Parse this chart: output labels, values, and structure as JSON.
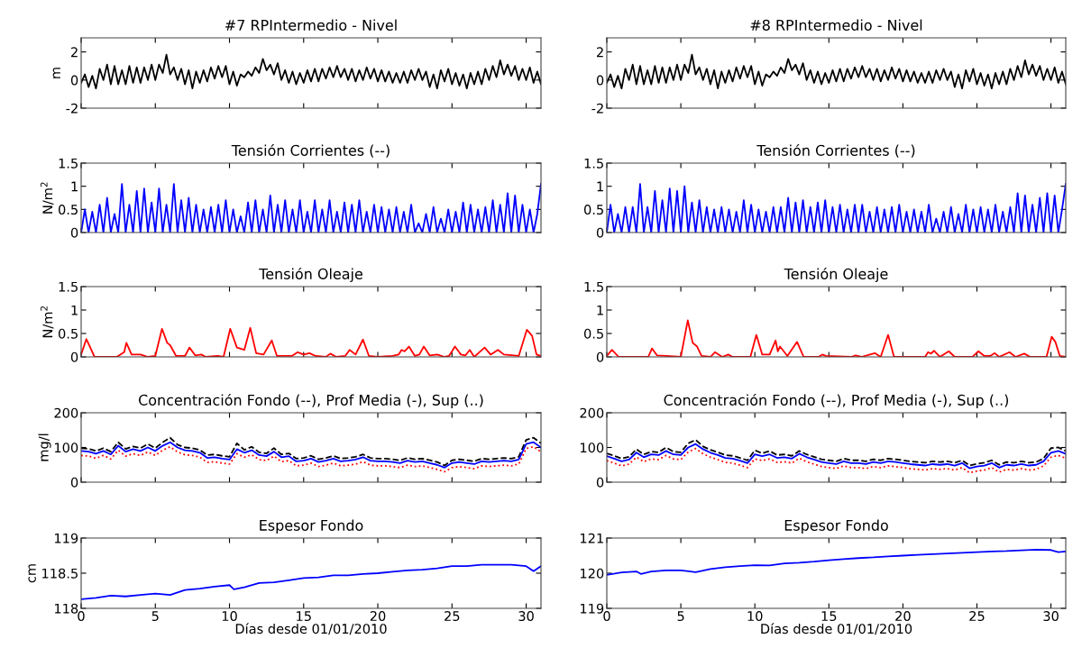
{
  "chart_data": [
    {
      "type": "line",
      "title": "#7 RPIntermedio - Nivel",
      "ylabel": "m",
      "xlim": [
        0,
        31
      ],
      "xticks": [
        0,
        5,
        10,
        15,
        20,
        25,
        30
      ],
      "ylim": [
        -2,
        3
      ],
      "yticks": [
        -2,
        0,
        2
      ],
      "tick_labels": "y",
      "x": [
        0,
        0.25,
        0.5,
        0.75,
        1,
        1.25,
        1.5,
        1.75,
        2,
        2.25,
        2.5,
        2.75,
        3,
        3.25,
        3.5,
        3.75,
        4,
        4.25,
        4.5,
        4.75,
        5,
        5.25,
        5.5,
        5.75,
        6,
        6.25,
        6.5,
        6.75,
        7,
        7.25,
        7.5,
        7.75,
        8,
        8.25,
        8.5,
        8.75,
        9,
        9.25,
        9.5,
        9.75,
        10,
        10.25,
        10.5,
        10.75,
        11,
        11.25,
        11.5,
        11.75,
        12,
        12.25,
        12.5,
        12.75,
        13,
        13.25,
        13.5,
        13.75,
        14,
        14.25,
        14.5,
        14.75,
        15,
        15.25,
        15.5,
        15.75,
        16,
        16.25,
        16.5,
        16.75,
        17,
        17.25,
        17.5,
        17.75,
        18,
        18.25,
        18.5,
        18.75,
        19,
        19.25,
        19.5,
        19.75,
        20,
        20.25,
        20.5,
        20.75,
        21,
        21.25,
        21.5,
        21.75,
        22,
        22.25,
        22.5,
        22.75,
        23,
        23.25,
        23.5,
        23.75,
        24,
        24.25,
        24.5,
        24.75,
        25,
        25.25,
        25.5,
        25.75,
        26,
        26.25,
        26.5,
        26.75,
        27,
        27.25,
        27.5,
        27.75,
        28,
        28.25,
        28.5,
        28.75,
        29,
        29.25,
        29.5,
        29.75,
        30,
        30.25,
        30.5,
        30.75,
        31
      ],
      "series": [
        {
          "color": "#000000",
          "line_style": "solid",
          "values": [
            -0.2,
            0.4,
            -0.5,
            0.3,
            -0.6,
            0.8,
            0.0,
            1.1,
            -0.3,
            1.0,
            -0.3,
            0.7,
            -0.3,
            1.0,
            -0.2,
            0.9,
            -0.2,
            0.9,
            0.0,
            1.1,
            0.0,
            1.1,
            0.5,
            1.8,
            0.4,
            0.9,
            0.0,
            0.8,
            -0.3,
            0.7,
            -0.6,
            0.6,
            -0.2,
            0.7,
            -0.1,
            0.9,
            0.1,
            1.0,
            0.2,
            1.0,
            -0.3,
            0.6,
            -0.4,
            0.4,
            0.2,
            0.6,
            0.3,
            0.9,
            0.5,
            1.5,
            0.7,
            1.1,
            0.4,
            1.2,
            0.0,
            0.7,
            -0.2,
            0.6,
            -0.3,
            0.5,
            -0.2,
            0.7,
            -0.1,
            0.8,
            -0.1,
            0.8,
            0.1,
            0.9,
            0.2,
            1.0,
            0.2,
            0.8,
            0.0,
            0.8,
            -0.1,
            0.7,
            0.0,
            0.9,
            0.1,
            0.8,
            -0.1,
            0.7,
            -0.1,
            0.6,
            -0.2,
            0.5,
            -0.2,
            0.6,
            -0.2,
            0.7,
            0.0,
            0.8,
            0.0,
            0.6,
            -0.5,
            0.4,
            -0.6,
            0.7,
            -0.1,
            0.8,
            -0.3,
            0.5,
            -0.4,
            0.4,
            -0.6,
            0.5,
            -0.3,
            0.6,
            -0.3,
            0.8,
            0.0,
            1.0,
            0.2,
            1.4,
            0.4,
            1.1,
            0.3,
            1.0,
            0.0,
            0.8,
            0.0,
            0.9,
            -0.2,
            0.6,
            -0.3
          ]
        }
      ]
    },
    {
      "type": "line",
      "title": "#8 RPIntermedio - Nivel",
      "xlim": [
        0,
        31
      ],
      "xticks": [
        0,
        5,
        10,
        15,
        20,
        25,
        30
      ],
      "ylim": [
        -2,
        3
      ],
      "yticks": [
        -2,
        0,
        2
      ],
      "tick_labels": "y",
      "x": [
        0,
        0.25,
        0.5,
        0.75,
        1,
        1.25,
        1.5,
        1.75,
        2,
        2.25,
        2.5,
        2.75,
        3,
        3.25,
        3.5,
        3.75,
        4,
        4.25,
        4.5,
        4.75,
        5,
        5.25,
        5.5,
        5.75,
        6,
        6.25,
        6.5,
        6.75,
        7,
        7.25,
        7.5,
        7.75,
        8,
        8.25,
        8.5,
        8.75,
        9,
        9.25,
        9.5,
        9.75,
        10,
        10.25,
        10.5,
        10.75,
        11,
        11.25,
        11.5,
        11.75,
        12,
        12.25,
        12.5,
        12.75,
        13,
        13.25,
        13.5,
        13.75,
        14,
        14.25,
        14.5,
        14.75,
        15,
        15.25,
        15.5,
        15.75,
        16,
        16.25,
        16.5,
        16.75,
        17,
        17.25,
        17.5,
        17.75,
        18,
        18.25,
        18.5,
        18.75,
        19,
        19.25,
        19.5,
        19.75,
        20,
        20.25,
        20.5,
        20.75,
        21,
        21.25,
        21.5,
        21.75,
        22,
        22.25,
        22.5,
        22.75,
        23,
        23.25,
        23.5,
        23.75,
        24,
        24.25,
        24.5,
        24.75,
        25,
        25.25,
        25.5,
        25.75,
        26,
        26.25,
        26.5,
        26.75,
        27,
        27.25,
        27.5,
        27.75,
        28,
        28.25,
        28.5,
        28.75,
        29,
        29.25,
        29.5,
        29.75,
        30,
        30.25,
        30.5,
        30.75,
        31
      ],
      "series": [
        {
          "color": "#000000",
          "line_style": "solid",
          "values": [
            -0.2,
            0.4,
            -0.5,
            0.3,
            -0.6,
            0.8,
            0.0,
            1.1,
            -0.3,
            1.0,
            -0.3,
            0.7,
            -0.3,
            1.0,
            -0.2,
            0.9,
            -0.2,
            0.9,
            0.0,
            1.1,
            0.0,
            1.1,
            0.5,
            1.8,
            0.4,
            0.9,
            0.0,
            0.8,
            -0.3,
            0.7,
            -0.6,
            0.6,
            -0.2,
            0.7,
            -0.1,
            0.9,
            0.1,
            1.0,
            0.2,
            1.0,
            -0.3,
            0.6,
            -0.4,
            0.4,
            0.2,
            0.6,
            0.3,
            0.9,
            0.5,
            1.5,
            0.7,
            1.1,
            0.4,
            1.2,
            0.0,
            0.7,
            -0.2,
            0.6,
            -0.3,
            0.5,
            -0.2,
            0.7,
            -0.1,
            0.8,
            -0.1,
            0.8,
            0.1,
            0.9,
            0.2,
            1.0,
            0.2,
            0.8,
            0.0,
            0.8,
            -0.1,
            0.7,
            0.0,
            0.9,
            0.1,
            0.8,
            -0.1,
            0.7,
            -0.1,
            0.6,
            -0.2,
            0.5,
            -0.2,
            0.6,
            -0.2,
            0.7,
            0.0,
            0.8,
            0.0,
            0.6,
            -0.5,
            0.4,
            -0.6,
            0.7,
            -0.1,
            0.8,
            -0.3,
            0.5,
            -0.4,
            0.4,
            -0.6,
            0.5,
            -0.3,
            0.6,
            -0.3,
            0.8,
            0.0,
            1.0,
            0.2,
            1.4,
            0.4,
            1.1,
            0.3,
            1.0,
            0.0,
            0.8,
            0.0,
            0.9,
            -0.2,
            0.6,
            -0.3
          ]
        }
      ]
    },
    {
      "type": "line",
      "title": "Tensión Corrientes (--)",
      "ylabel": "N/m$^{2}$",
      "xlim": [
        0,
        31
      ],
      "xticks": [
        0,
        5,
        10,
        15,
        20,
        25,
        30
      ],
      "ylim": [
        0,
        1.5
      ],
      "yticks": [
        0,
        0.5,
        1,
        1.5
      ],
      "tick_labels": "y",
      "x": [
        0,
        0.25,
        0.5,
        0.75,
        1,
        1.25,
        1.5,
        1.75,
        2,
        2.25,
        2.5,
        2.75,
        3,
        3.25,
        3.5,
        3.75,
        4,
        4.25,
        4.5,
        4.75,
        5,
        5.25,
        5.5,
        5.75,
        6,
        6.25,
        6.5,
        6.75,
        7,
        7.25,
        7.5,
        7.75,
        8,
        8.25,
        8.5,
        8.75,
        9,
        9.25,
        9.5,
        9.75,
        10,
        10.25,
        10.5,
        10.75,
        11,
        11.25,
        11.5,
        11.75,
        12,
        12.25,
        12.5,
        12.75,
        13,
        13.25,
        13.5,
        13.75,
        14,
        14.25,
        14.5,
        14.75,
        15,
        15.25,
        15.5,
        15.75,
        16,
        16.25,
        16.5,
        16.75,
        17,
        17.25,
        17.5,
        17.75,
        18,
        18.25,
        18.5,
        18.75,
        19,
        19.25,
        19.5,
        19.75,
        20,
        20.25,
        20.5,
        20.75,
        21,
        21.25,
        21.5,
        21.75,
        22,
        22.25,
        22.5,
        22.75,
        23,
        23.25,
        23.5,
        23.75,
        24,
        24.25,
        24.5,
        24.75,
        25,
        25.25,
        25.5,
        25.75,
        26,
        26.25,
        26.5,
        26.75,
        27,
        27.25,
        27.5,
        27.75,
        28,
        28.25,
        28.5,
        28.75,
        29,
        29.25,
        29.5,
        29.75,
        30,
        30.25,
        30.5,
        30.75,
        31
      ],
      "series": [
        {
          "color": "#0000ff",
          "line_style": "solid",
          "values": [
            0,
            0.5,
            0,
            0.45,
            0,
            0.6,
            0,
            0.75,
            0,
            0.4,
            0,
            1.05,
            0,
            0.6,
            0,
            0.9,
            0,
            0.95,
            0,
            0.65,
            0,
            0.95,
            0,
            0.6,
            0,
            1.05,
            0,
            0.7,
            0,
            0.75,
            0,
            0.6,
            0,
            0.5,
            0,
            0.55,
            0,
            0.6,
            0,
            0.7,
            0,
            0.5,
            0,
            0.35,
            0,
            0.65,
            0,
            0.7,
            0,
            0.5,
            0,
            0.8,
            0,
            0.6,
            0,
            0.7,
            0,
            0.5,
            0,
            0.7,
            0,
            0.45,
            0,
            0.7,
            0,
            0.5,
            0,
            0.7,
            0,
            0.45,
            0,
            0.65,
            0,
            0.6,
            0,
            0.7,
            0,
            0.45,
            0,
            0.6,
            0,
            0.55,
            0,
            0.5,
            0,
            0.55,
            0,
            0.45,
            0,
            0.6,
            0,
            0.2,
            0,
            0.4,
            0,
            0.55,
            0,
            0.3,
            0,
            0.5,
            0,
            0.45,
            0,
            0.65,
            0,
            0.6,
            0,
            0.5,
            0,
            0.55,
            0,
            0.7,
            0,
            0.6,
            0,
            0.85,
            0,
            0.8,
            0,
            0.6,
            0,
            0.5,
            0,
            0.4,
            1.05
          ]
        }
      ]
    },
    {
      "type": "line",
      "title": "Tensión Corrientes (--)",
      "xlim": [
        0,
        31
      ],
      "xticks": [
        0,
        5,
        10,
        15,
        20,
        25,
        30
      ],
      "ylim": [
        0,
        1.5
      ],
      "yticks": [
        0,
        0.5,
        1,
        1.5
      ],
      "tick_labels": "y",
      "x": [
        0,
        0.25,
        0.5,
        0.75,
        1,
        1.25,
        1.5,
        1.75,
        2,
        2.25,
        2.5,
        2.75,
        3,
        3.25,
        3.5,
        3.75,
        4,
        4.25,
        4.5,
        4.75,
        5,
        5.25,
        5.5,
        5.75,
        6,
        6.25,
        6.5,
        6.75,
        7,
        7.25,
        7.5,
        7.75,
        8,
        8.25,
        8.5,
        8.75,
        9,
        9.25,
        9.5,
        9.75,
        10,
        10.25,
        10.5,
        10.75,
        11,
        11.25,
        11.5,
        11.75,
        12,
        12.25,
        12.5,
        12.75,
        13,
        13.25,
        13.5,
        13.75,
        14,
        14.25,
        14.5,
        14.75,
        15,
        15.25,
        15.5,
        15.75,
        16,
        16.25,
        16.5,
        16.75,
        17,
        17.25,
        17.5,
        17.75,
        18,
        18.25,
        18.5,
        18.75,
        19,
        19.25,
        19.5,
        19.75,
        20,
        20.25,
        20.5,
        20.75,
        21,
        21.25,
        21.5,
        21.75,
        22,
        22.25,
        22.5,
        22.75,
        23,
        23.25,
        23.5,
        23.75,
        24,
        24.25,
        24.5,
        24.75,
        25,
        25.25,
        25.5,
        25.75,
        26,
        26.25,
        26.5,
        26.75,
        27,
        27.25,
        27.5,
        27.75,
        28,
        28.25,
        28.5,
        28.75,
        29,
        29.25,
        29.5,
        29.75,
        30,
        30.25,
        30.5,
        30.75,
        31
      ],
      "series": [
        {
          "color": "#0000ff",
          "line_style": "solid",
          "values": [
            0,
            0.6,
            0,
            0.4,
            0,
            0.55,
            0,
            0.55,
            0,
            1.05,
            0,
            0.55,
            0,
            0.9,
            0,
            0.7,
            0,
            0.95,
            0,
            0.9,
            0,
            1.0,
            0,
            0.65,
            0,
            0.7,
            0,
            0.55,
            0,
            0.5,
            0,
            0.55,
            0,
            0.5,
            0,
            0.45,
            0,
            0.7,
            0,
            0.6,
            0,
            0.5,
            0,
            0.45,
            0,
            0.55,
            0,
            0.55,
            0,
            0.75,
            0,
            0.65,
            0,
            0.7,
            0,
            0.55,
            0,
            0.65,
            0,
            0.7,
            0,
            0.55,
            0,
            0.6,
            0,
            0.5,
            0,
            0.6,
            0,
            0.6,
            0,
            0.45,
            0,
            0.55,
            0,
            0.5,
            0,
            0.55,
            0,
            0.6,
            0,
            0.45,
            0,
            0.5,
            0,
            0.45,
            0,
            0.6,
            0,
            0.3,
            0,
            0.45,
            0,
            0.55,
            0,
            0.4,
            0,
            0.6,
            0,
            0.5,
            0,
            0.55,
            0,
            0.5,
            0,
            0.6,
            0,
            0.45,
            0,
            0.55,
            0,
            0.85,
            0,
            0.8,
            0,
            0.6,
            0,
            0.75,
            0,
            0.85,
            0,
            0.8,
            0,
            0.5,
            1.05
          ]
        }
      ]
    },
    {
      "type": "line",
      "title": "Tensión Oleaje",
      "ylabel": "N/m$^{2}$",
      "xlim": [
        0,
        31
      ],
      "xticks": [
        0,
        5,
        10,
        15,
        20,
        25,
        30
      ],
      "ylim": [
        0,
        1.5
      ],
      "yticks": [
        0,
        0.5,
        1,
        1.5
      ],
      "tick_labels": "y",
      "x": [
        0,
        0.35,
        0.9,
        2.4,
        2.9,
        3.05,
        3.4,
        4.0,
        4.5,
        5.0,
        5.45,
        5.8,
        6.0,
        6.4,
        7.0,
        7.3,
        7.7,
        8.1,
        8.4,
        9.2,
        9.6,
        10.05,
        10.5,
        11.0,
        11.4,
        11.8,
        12.3,
        12.85,
        13.2,
        14.2,
        14.6,
        15.0,
        15.4,
        15.8,
        16.5,
        16.8,
        17.2,
        17.8,
        18.1,
        18.5,
        19.0,
        19.4,
        20.0,
        21.0,
        21.4,
        21.6,
        21.8,
        22.1,
        22.5,
        22.8,
        23.1,
        23.5,
        24.0,
        24.5,
        24.8,
        25.2,
        25.6,
        25.9,
        26.2,
        26.5,
        27.2,
        27.6,
        28.1,
        28.5,
        29.5,
        30.05,
        30.4,
        30.7,
        31.0
      ],
      "series": [
        {
          "color": "#ff0000",
          "line_style": "solid",
          "values": [
            0.05,
            0.38,
            0.0,
            0.0,
            0.1,
            0.3,
            0.05,
            0.05,
            0.0,
            0.02,
            0.6,
            0.3,
            0.25,
            0.02,
            0.02,
            0.2,
            0.03,
            0.05,
            0.0,
            0.02,
            0.0,
            0.6,
            0.2,
            0.15,
            0.62,
            0.08,
            0.05,
            0.35,
            0.02,
            0.02,
            0.1,
            0.05,
            0.08,
            0.02,
            0.0,
            0.07,
            0.0,
            0.02,
            0.15,
            0.05,
            0.37,
            0.02,
            0.0,
            0.02,
            0.05,
            0.15,
            0.12,
            0.22,
            0.02,
            0.05,
            0.22,
            0.03,
            0.05,
            0.0,
            0.02,
            0.22,
            0.05,
            0.03,
            0.15,
            0.0,
            0.2,
            0.05,
            0.15,
            0.05,
            0.02,
            0.58,
            0.45,
            0.05,
            0.02
          ]
        }
      ]
    },
    {
      "type": "line",
      "title": "Tensión Oleaje",
      "xlim": [
        0,
        31
      ],
      "xticks": [
        0,
        5,
        10,
        15,
        20,
        25,
        30
      ],
      "ylim": [
        0,
        1.5
      ],
      "yticks": [
        0,
        0.5,
        1,
        1.5
      ],
      "tick_labels": "y",
      "x": [
        0,
        0.35,
        0.8,
        2.8,
        3.05,
        3.4,
        4.0,
        5.0,
        5.47,
        5.8,
        6.1,
        6.4,
        7.0,
        7.3,
        7.8,
        8.2,
        8.5,
        9.7,
        10.1,
        10.5,
        11.0,
        11.4,
        11.55,
        11.7,
        12.2,
        12.85,
        13.3,
        14.3,
        14.55,
        14.8,
        16.5,
        16.8,
        17.2,
        18.1,
        18.5,
        19.0,
        19.4,
        21.5,
        21.7,
        21.9,
        22.1,
        22.5,
        23.1,
        23.5,
        24.7,
        25.1,
        25.5,
        25.9,
        26.2,
        26.5,
        27.2,
        27.6,
        28.2,
        28.6,
        29.7,
        30.05,
        30.3,
        30.6,
        31.0
      ],
      "series": [
        {
          "color": "#ff0000",
          "line_style": "solid",
          "values": [
            0.02,
            0.15,
            0.0,
            0.0,
            0.18,
            0.03,
            0.02,
            0.0,
            0.78,
            0.3,
            0.22,
            0.02,
            0.0,
            0.1,
            0.0,
            0.05,
            0.0,
            0.0,
            0.47,
            0.05,
            0.05,
            0.35,
            0.12,
            0.22,
            0.02,
            0.32,
            0.0,
            0.0,
            0.05,
            0.02,
            0.0,
            0.03,
            0.0,
            0.08,
            0.0,
            0.47,
            0.0,
            0.0,
            0.1,
            0.07,
            0.13,
            0.0,
            0.12,
            0.0,
            0.0,
            0.12,
            0.02,
            0.02,
            0.08,
            0.0,
            0.1,
            0.0,
            0.07,
            0.0,
            0.0,
            0.43,
            0.32,
            0.02,
            0.0
          ]
        }
      ]
    },
    {
      "type": "line",
      "title": "Concentración Fondo (--), Prof Media (-), Sup (..)",
      "ylabel": "mg/l",
      "xlim": [
        0,
        31
      ],
      "xticks": [
        0,
        5,
        10,
        15,
        20,
        25,
        30
      ],
      "ylim": [
        0,
        200
      ],
      "yticks": [
        0,
        100,
        200
      ],
      "tick_labels": "y",
      "x": [
        0,
        0.5,
        1,
        1.5,
        2,
        2.5,
        3,
        3.5,
        4,
        4.5,
        5,
        5.5,
        6,
        6.5,
        7,
        7.5,
        8,
        8.5,
        9,
        9.5,
        10,
        10.5,
        11,
        11.5,
        12,
        12.5,
        13,
        13.5,
        14,
        14.5,
        15,
        15.5,
        16,
        16.5,
        17,
        17.5,
        18,
        18.5,
        19,
        19.5,
        20,
        20.5,
        21,
        21.5,
        22,
        22.5,
        23,
        23.5,
        24,
        24.5,
        25,
        25.5,
        26,
        26.5,
        27,
        27.5,
        28,
        28.5,
        29,
        29.5,
        30,
        30.5,
        31
      ],
      "series": [
        {
          "color": "#000000",
          "line_style": "dashed",
          "values": [
            98,
            96,
            90,
            98,
            88,
            115,
            96,
            103,
            98,
            110,
            98,
            115,
            128,
            108,
            100,
            98,
            93,
            78,
            80,
            76,
            73,
            112,
            93,
            102,
            86,
            83,
            98,
            80,
            83,
            68,
            70,
            76,
            66,
            70,
            76,
            68,
            70,
            73,
            80,
            70,
            68,
            68,
            66,
            63,
            70,
            66,
            68,
            63,
            58,
            48,
            63,
            66,
            63,
            60,
            68,
            66,
            68,
            70,
            68,
            73,
            122,
            128,
            112
          ]
        },
        {
          "color": "#0000ff",
          "line_style": "solid",
          "values": [
            90,
            88,
            82,
            90,
            80,
            105,
            88,
            95,
            90,
            100,
            90,
            105,
            115,
            100,
            92,
            90,
            85,
            70,
            72,
            68,
            65,
            95,
            85,
            92,
            78,
            75,
            88,
            72,
            75,
            60,
            62,
            68,
            58,
            62,
            68,
            60,
            62,
            65,
            72,
            62,
            60,
            60,
            58,
            55,
            62,
            58,
            60,
            55,
            50,
            42,
            55,
            58,
            55,
            52,
            60,
            58,
            60,
            62,
            60,
            65,
            110,
            115,
            100
          ]
        },
        {
          "color": "#ff0000",
          "line_style": "dotted",
          "values": [
            77,
            75,
            69,
            77,
            67,
            92,
            75,
            82,
            77,
            87,
            77,
            92,
            102,
            87,
            79,
            77,
            72,
            57,
            59,
            55,
            52,
            82,
            72,
            79,
            65,
            62,
            75,
            59,
            62,
            47,
            49,
            55,
            45,
            49,
            55,
            47,
            49,
            52,
            59,
            49,
            47,
            47,
            45,
            42,
            49,
            45,
            47,
            42,
            37,
            30,
            42,
            45,
            42,
            39,
            47,
            45,
            47,
            49,
            47,
            52,
            97,
            102,
            87
          ]
        }
      ]
    },
    {
      "type": "line",
      "title": "Concentración Fondo (--), Prof Media (-), Sup (..)",
      "xlim": [
        0,
        31
      ],
      "xticks": [
        0,
        5,
        10,
        15,
        20,
        25,
        30
      ],
      "ylim": [
        0,
        200
      ],
      "yticks": [
        0,
        100,
        200
      ],
      "tick_labels": "y",
      "x": [
        0,
        0.5,
        1,
        1.5,
        2,
        2.5,
        3,
        3.5,
        4,
        4.5,
        5,
        5.5,
        6,
        6.5,
        7,
        7.5,
        8,
        8.5,
        9,
        9.5,
        10,
        10.5,
        11,
        11.5,
        12,
        12.5,
        13,
        13.5,
        14,
        14.5,
        15,
        15.5,
        16,
        16.5,
        17,
        17.5,
        18,
        18.5,
        19,
        19.5,
        20,
        20.5,
        21,
        21.5,
        22,
        22.5,
        23,
        23.5,
        24,
        24.5,
        25,
        25.5,
        26,
        26.5,
        27,
        27.5,
        28,
        28.5,
        29,
        29.5,
        30,
        30.5,
        31
      ],
      "series": [
        {
          "color": "#000000",
          "line_style": "dashed",
          "values": [
            83,
            76,
            68,
            73,
            95,
            80,
            88,
            86,
            100,
            88,
            86,
            112,
            122,
            103,
            93,
            86,
            78,
            76,
            70,
            63,
            92,
            83,
            90,
            78,
            80,
            76,
            90,
            80,
            73,
            66,
            63,
            60,
            68,
            63,
            63,
            60,
            66,
            63,
            68,
            66,
            63,
            60,
            58,
            56,
            60,
            58,
            60,
            56,
            63,
            48,
            53,
            56,
            63,
            50,
            58,
            56,
            60,
            56,
            58,
            68,
            98,
            100,
            90
          ]
        },
        {
          "color": "#0000ff",
          "line_style": "solid",
          "values": [
            75,
            68,
            60,
            65,
            85,
            72,
            80,
            78,
            90,
            80,
            78,
            100,
            110,
            95,
            85,
            78,
            70,
            68,
            62,
            55,
            80,
            75,
            80,
            70,
            72,
            68,
            82,
            72,
            65,
            58,
            55,
            52,
            60,
            55,
            55,
            52,
            58,
            55,
            60,
            58,
            55,
            52,
            50,
            48,
            52,
            50,
            52,
            48,
            55,
            40,
            45,
            48,
            55,
            42,
            50,
            48,
            52,
            48,
            50,
            60,
            85,
            90,
            82
          ]
        },
        {
          "color": "#ff0000",
          "line_style": "dotted",
          "values": [
            62,
            55,
            47,
            52,
            72,
            59,
            67,
            65,
            77,
            67,
            65,
            87,
            97,
            82,
            72,
            65,
            57,
            55,
            49,
            42,
            67,
            62,
            67,
            57,
            59,
            55,
            69,
            59,
            52,
            45,
            42,
            39,
            47,
            42,
            42,
            39,
            45,
            42,
            47,
            45,
            42,
            39,
            37,
            35,
            39,
            37,
            39,
            35,
            42,
            27,
            32,
            35,
            42,
            29,
            37,
            35,
            39,
            35,
            37,
            47,
            72,
            77,
            69
          ]
        }
      ]
    },
    {
      "type": "line",
      "title": "Espesor Fondo",
      "ylabel": "cm",
      "xlabel": "Días desde 01/01/2010",
      "xlim": [
        0,
        31
      ],
      "xticks": [
        0,
        5,
        10,
        15,
        20,
        25,
        30
      ],
      "ylim": [
        118,
        119
      ],
      "yticks": [
        118,
        118.5,
        119
      ],
      "x": [
        0,
        1,
        2,
        3,
        4,
        5,
        6,
        7,
        8,
        9,
        10,
        10.3,
        11,
        12,
        13,
        14,
        15,
        16,
        17,
        18,
        19,
        20,
        21,
        22,
        23,
        24,
        25,
        26,
        27,
        28,
        29,
        30,
        30.5,
        31
      ],
      "series": [
        {
          "color": "#0000ff",
          "line_style": "solid",
          "values": [
            118.13,
            118.15,
            118.18,
            118.17,
            118.19,
            118.21,
            118.19,
            118.26,
            118.28,
            118.31,
            118.33,
            118.27,
            118.3,
            118.36,
            118.37,
            118.4,
            118.43,
            118.44,
            118.47,
            118.47,
            118.49,
            118.5,
            118.52,
            118.54,
            118.55,
            118.57,
            118.6,
            118.6,
            118.62,
            118.62,
            118.62,
            118.6,
            118.53,
            118.6
          ]
        }
      ]
    },
    {
      "type": "line",
      "title": "Espesor Fondo",
      "xlabel": "Días desde 01/01/2010",
      "xlim": [
        0,
        31
      ],
      "xticks": [
        0,
        5,
        10,
        15,
        20,
        25,
        30
      ],
      "ylim": [
        119,
        121
      ],
      "yticks": [
        119,
        120,
        121
      ],
      "x": [
        0,
        1,
        2,
        2.3,
        3,
        4,
        5,
        6,
        7,
        8,
        9,
        10,
        11,
        12,
        13,
        14,
        15,
        16,
        17,
        18,
        19,
        20,
        21,
        22,
        23,
        24,
        25,
        26,
        27,
        28,
        29,
        30,
        30.5,
        31
      ],
      "series": [
        {
          "color": "#0000ff",
          "line_style": "solid",
          "values": [
            119.95,
            120.02,
            120.05,
            119.98,
            120.05,
            120.08,
            120.08,
            120.03,
            120.12,
            120.17,
            120.2,
            120.23,
            120.22,
            120.28,
            120.3,
            120.33,
            120.37,
            120.4,
            120.43,
            120.45,
            120.48,
            120.5,
            120.52,
            120.54,
            120.56,
            120.58,
            120.6,
            120.62,
            120.63,
            120.65,
            120.67,
            120.66,
            120.6,
            120.62
          ]
        }
      ]
    }
  ]
}
